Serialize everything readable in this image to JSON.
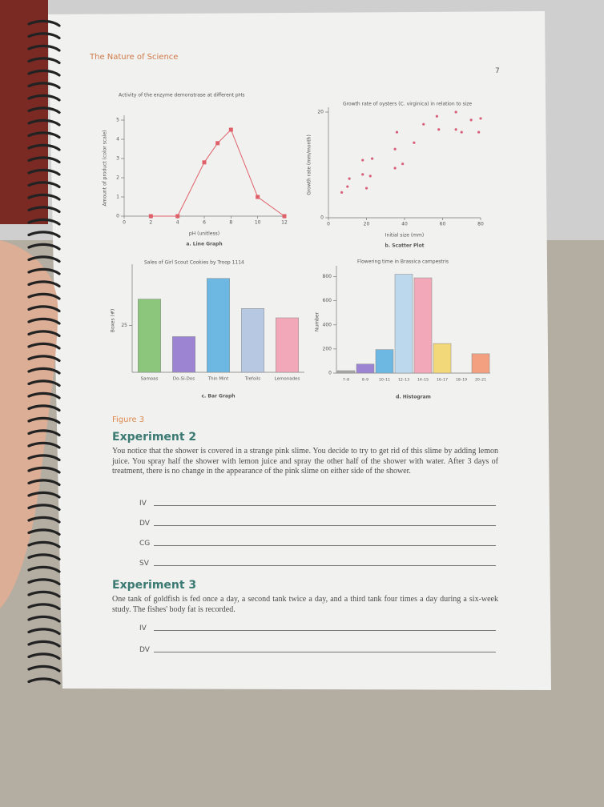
{
  "header": {
    "title": "The Nature of Science",
    "page_number": "7"
  },
  "chart_data": [
    {
      "type": "line",
      "title": "Activity of the enzyme demonstrase at different pHs",
      "x": [
        2,
        4,
        6,
        7,
        8,
        10,
        12
      ],
      "values": [
        0,
        0,
        2.8,
        3.8,
        4.5,
        1,
        0
      ],
      "color": "#e0606a",
      "xlim": [
        0,
        12
      ],
      "xticks": [
        0,
        2,
        4,
        6,
        8,
        10,
        12
      ],
      "ylim": [
        0,
        5
      ],
      "yticks": [
        0,
        1,
        2,
        3,
        4,
        5
      ],
      "xlabel": "pH (unitless)",
      "ylabel": "Amount of product (color scale)",
      "caption": "a. Line Graph"
    },
    {
      "type": "scatter",
      "title": "Growth rate of oysters (C. virginica) in relation to size",
      "x": [
        7,
        10,
        11,
        20,
        18,
        22,
        18,
        23,
        35,
        39,
        35,
        36,
        45,
        50,
        57,
        58,
        67,
        67,
        70,
        75,
        79,
        80
      ],
      "values": [
        4.8,
        5.9,
        7.4,
        5.6,
        8.2,
        7.9,
        10.9,
        11.2,
        9.4,
        10.2,
        13,
        16.2,
        14.2,
        17.7,
        19.2,
        16.7,
        16.7,
        20,
        16.2,
        18.5,
        16.2,
        18.8
      ],
      "color": "#d9607a",
      "xlim": [
        0,
        80
      ],
      "xticks": [
        0,
        20,
        40,
        60,
        80
      ],
      "ylim": [
        0,
        20
      ],
      "yticks": [
        0,
        20
      ],
      "xlabel": "Initial size (mm)",
      "ylabel": "Growth rate (mm/month)",
      "caption": "b. Scatter Plot"
    },
    {
      "type": "bar",
      "title": "Sales of Girl Scout Cookies by Troop 1114",
      "categories": [
        "Samoas",
        "Do-Si-Dos",
        "Thin Mint",
        "Trefoils",
        "Lemonades"
      ],
      "values": [
        39,
        19,
        50,
        34,
        29
      ],
      "colors": [
        "#8cc67c",
        "#9c84d2",
        "#6cb8e2",
        "#b7c8e2",
        "#f2a8b8"
      ],
      "ylim": [
        0,
        55
      ],
      "yticks": [
        25
      ],
      "ylabel": "Boxes (#)",
      "caption": "c. Bar Graph"
    },
    {
      "type": "histogram",
      "title": "Flowering time in Brassica campestris",
      "categories": [
        "7–8",
        "8–9",
        "10–11",
        "12–13",
        "14–15",
        "16–17",
        "18–19",
        "20–21"
      ],
      "values": [
        20,
        75,
        195,
        820,
        790,
        245,
        0,
        160
      ],
      "colors": [
        "#a8a8a8",
        "#9c84d2",
        "#6cb8e2",
        "#bcd8ec",
        "#f2a8b8",
        "#f2d878",
        "#cccccc",
        "#f2a080"
      ],
      "ylim": [
        0,
        850
      ],
      "yticks": [
        0,
        200,
        400,
        600,
        800
      ],
      "ylabel": "Number",
      "caption": "d. Histogram"
    }
  ],
  "figure_label": "Figure 3",
  "experiments": [
    {
      "title": "Experiment 2",
      "text": "You notice that the shower is covered in a strange pink slime. You decide to try to get rid of this slime by adding lemon juice. You spray half the shower with lemon juice and spray the other half of the shower with water. After 3 days of treatment, there is no change in the appearance of the pink slime on either side of the shower.",
      "blanks": [
        "IV",
        "DV",
        "CG",
        "SV"
      ]
    },
    {
      "title": "Experiment 3",
      "text": "One tank of goldfish is fed once a day, a second tank twice a day, and a third tank four times a day during a six-week study. The fishes' body fat is recorded.",
      "blanks": [
        "IV",
        "DV"
      ]
    }
  ]
}
